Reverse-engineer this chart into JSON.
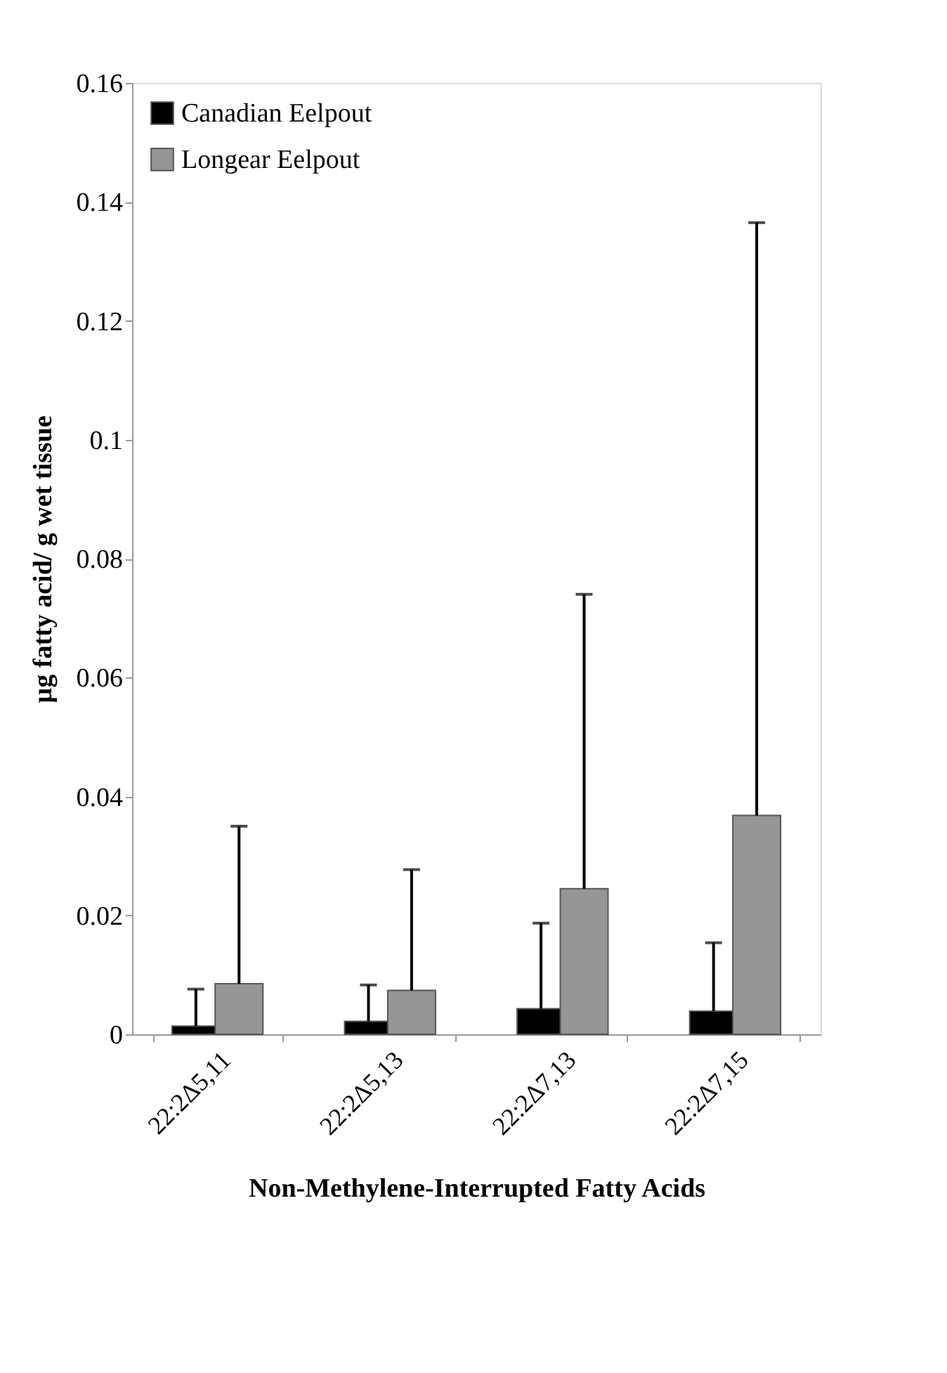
{
  "chart_data": {
    "type": "bar",
    "xlabel": "Non-Methylene-Interrupted Fatty Acids",
    "ylabel": "µg fatty acid/ g wet tissue",
    "categories": [
      "22:2Δ5,11",
      "22:2Δ5,13",
      "22:2Δ7,13",
      "22:2Δ7,15"
    ],
    "series": [
      {
        "name": "Canadian Eelpout",
        "color": "#000000",
        "values": [
          0.0014,
          0.0022,
          0.0043,
          0.0039
        ],
        "errors": [
          [
            0.0014,
            0.0076
          ],
          [
            0.0022,
            0.0083
          ],
          [
            0.0043,
            0.0187
          ],
          [
            0.0039,
            0.0154
          ]
        ]
      },
      {
        "name": "Longear Eelpout",
        "color": "#969696",
        "values": [
          0.0085,
          0.0074,
          0.0245,
          0.0368
        ],
        "errors": [
          [
            0.0085,
            0.035
          ],
          [
            0.0074,
            0.0277
          ],
          [
            0.0245,
            0.074
          ],
          [
            0.0368,
            0.1365
          ]
        ]
      }
    ],
    "ylim": [
      0,
      0.16
    ],
    "yticks": [
      0,
      0.02,
      0.04,
      0.06,
      0.08,
      0.1,
      0.12,
      0.14,
      0.16
    ],
    "grid": false,
    "legend": "top left"
  }
}
